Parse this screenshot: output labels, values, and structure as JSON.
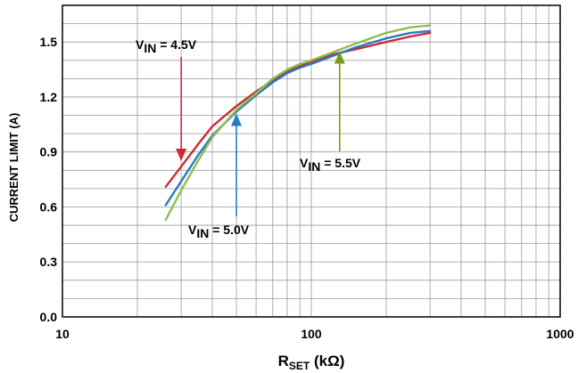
{
  "chart_data": {
    "type": "line",
    "xscale": "log",
    "xlim": [
      10,
      1000
    ],
    "ylim": [
      0,
      1.7
    ],
    "grid": true,
    "xticks": [
      {
        "value": 10,
        "label": "10"
      },
      {
        "value": 100,
        "label": "100"
      },
      {
        "value": 1000,
        "label": "1000"
      }
    ],
    "yticks": [
      {
        "value": 0,
        "label": "0.0"
      },
      {
        "value": 0.3,
        "label": "0.3"
      },
      {
        "value": 0.6,
        "label": "0.6"
      },
      {
        "value": 0.9,
        "label": "0.9"
      },
      {
        "value": 1.2,
        "label": "1.2"
      },
      {
        "value": 1.5,
        "label": "1.5"
      }
    ],
    "xlabel": {
      "main": "R",
      "sub": "SET",
      "unit": " (kΩ)"
    },
    "ylabel": "CURRENT LIMIT (A)",
    "series": [
      {
        "id": "v45",
        "color": "#cc2a36",
        "x": [
          26,
          30,
          35,
          40,
          50,
          60,
          70,
          80,
          90,
          100,
          120,
          150,
          200,
          250,
          300
        ],
        "y": [
          0.71,
          0.82,
          0.94,
          1.04,
          1.15,
          1.23,
          1.29,
          1.34,
          1.37,
          1.39,
          1.43,
          1.46,
          1.5,
          1.53,
          1.55
        ]
      },
      {
        "id": "v50",
        "color": "#2a7ac0",
        "x": [
          26,
          30,
          35,
          40,
          50,
          60,
          70,
          80,
          90,
          100,
          120,
          150,
          200,
          250,
          300
        ],
        "y": [
          0.61,
          0.74,
          0.88,
          0.99,
          1.12,
          1.21,
          1.28,
          1.33,
          1.36,
          1.38,
          1.42,
          1.47,
          1.52,
          1.55,
          1.56
        ]
      },
      {
        "id": "v55",
        "color": "#8dc04a",
        "x": [
          26,
          30,
          35,
          40,
          50,
          60,
          70,
          80,
          90,
          100,
          120,
          150,
          200,
          250,
          300
        ],
        "y": [
          0.53,
          0.69,
          0.85,
          0.98,
          1.13,
          1.22,
          1.3,
          1.35,
          1.38,
          1.4,
          1.44,
          1.49,
          1.55,
          1.58,
          1.59
        ]
      }
    ],
    "annotations": [
      {
        "id": "v45",
        "label": "V",
        "sub": "IN",
        "value": " = 4.5V",
        "color": "#cc2a36",
        "points_to": [
          30,
          0.85
        ]
      },
      {
        "id": "v50",
        "label": "V",
        "sub": "IN",
        "value": " = 5.0V",
        "color": "#2a7ac0",
        "points_to": [
          50,
          1.11
        ]
      },
      {
        "id": "v55",
        "label": "V",
        "sub": "IN",
        "value": " = 5.5V",
        "color": "#7a9a1e",
        "points_to": [
          130,
          1.45
        ]
      }
    ]
  }
}
